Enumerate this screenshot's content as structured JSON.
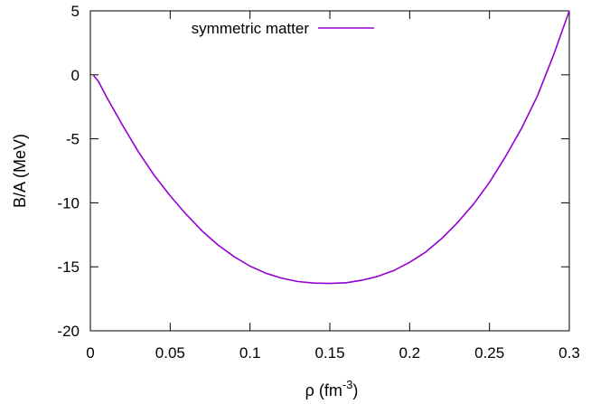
{
  "chart_data": {
    "type": "line",
    "xlabel": "ρ (fm",
    "xlabel_superscript": "-3",
    "xlabel_suffix": ")",
    "ylabel": "B/A (MeV)",
    "xlim": [
      0,
      0.3
    ],
    "ylim": [
      -20,
      5
    ],
    "xticks": [
      0,
      0.05,
      0.1,
      0.15,
      0.2,
      0.25,
      0.3
    ],
    "xtick_labels": [
      "0",
      "0.05",
      "0.1",
      "0.15",
      "0.2",
      "0.25",
      "0.3"
    ],
    "yticks": [
      -20,
      -15,
      -10,
      -5,
      0,
      5
    ],
    "ytick_labels": [
      "-20",
      "-15",
      "-10",
      "-5",
      "0",
      "5"
    ],
    "grid": false,
    "legend_position": "top-left",
    "series": [
      {
        "name": "symmetric matter",
        "color": "#9400d3",
        "x": [
          0.002,
          0.005,
          0.01,
          0.02,
          0.03,
          0.04,
          0.05,
          0.06,
          0.07,
          0.08,
          0.09,
          0.1,
          0.11,
          0.12,
          0.13,
          0.14,
          0.15,
          0.16,
          0.17,
          0.18,
          0.19,
          0.2,
          0.21,
          0.22,
          0.23,
          0.24,
          0.25,
          0.26,
          0.27,
          0.28,
          0.29,
          0.3
        ],
        "y": [
          -0.05,
          -0.5,
          -1.7,
          -3.9,
          -6.0,
          -7.85,
          -9.45,
          -10.9,
          -12.2,
          -13.3,
          -14.2,
          -14.95,
          -15.5,
          -15.9,
          -16.15,
          -16.27,
          -16.3,
          -16.25,
          -16.05,
          -15.75,
          -15.3,
          -14.65,
          -13.85,
          -12.8,
          -11.55,
          -10.1,
          -8.4,
          -6.4,
          -4.2,
          -1.65,
          1.5,
          5.0
        ]
      }
    ]
  }
}
